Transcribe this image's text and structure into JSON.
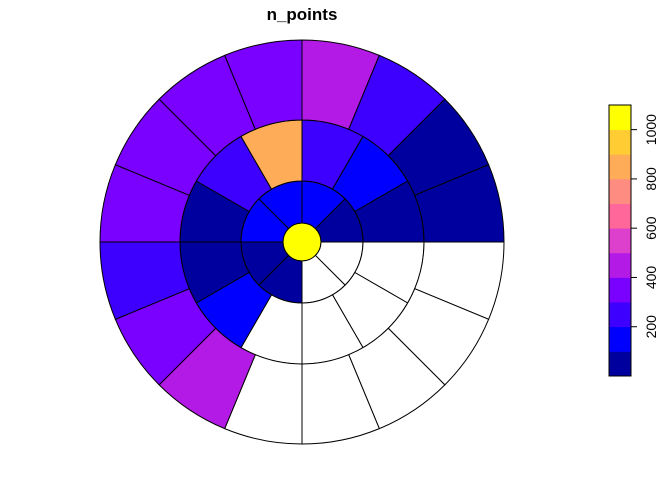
{
  "chart_data": {
    "type": "heatmap",
    "subtype": "polar-grid",
    "title": "n_points",
    "rings": [
      {
        "ring": 0,
        "sectors": 1,
        "values": [
          1100
        ]
      },
      {
        "ring": 1,
        "sectors": 8,
        "values": [
          0,
          0,
          40,
          40,
          120,
          100,
          160,
          60
        ]
      },
      {
        "ring": 2,
        "sectors": 12,
        "values": [
          0,
          0,
          0,
          0,
          140,
          60,
          40,
          240,
          880,
          250,
          180,
          80
        ]
      },
      {
        "ring": 3,
        "sectors": 16,
        "values": [
          0,
          0,
          0,
          0,
          0,
          420,
          300,
          260,
          320,
          340,
          340,
          340,
          420,
          200,
          80,
          60
        ]
      }
    ],
    "legend": {
      "position": "right",
      "range": [
        0,
        1100
      ],
      "ticks": [
        "200",
        "400",
        "600",
        "800",
        "1000"
      ],
      "tick_values": [
        200,
        400,
        600,
        800,
        1000
      ]
    },
    "colors": {
      "zero": "#ffffff",
      "scale": [
        "#00009f",
        "#0000ff",
        "#3d00ff",
        "#7a00ff",
        "#b31ae6",
        "#dd40cc",
        "#ff6699",
        "#ff8c80",
        "#ffac59",
        "#ffcd33",
        "#ffff00"
      ]
    }
  }
}
